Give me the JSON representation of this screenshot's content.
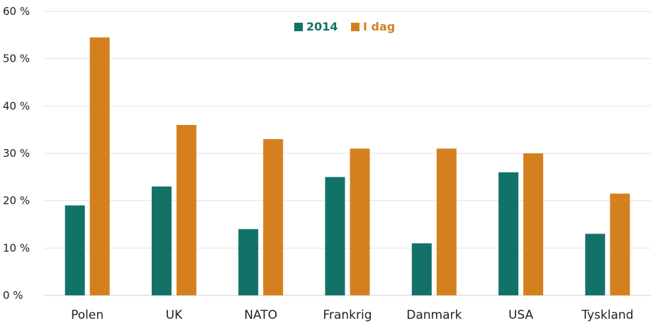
{
  "chart_data": {
    "type": "bar",
    "categories": [
      "Polen",
      "UK",
      "NATO",
      "Frankrig",
      "Danmark",
      "USA",
      "Tyskland"
    ],
    "series": [
      {
        "name": "2014",
        "color": "#137268",
        "values": [
          19,
          23,
          14,
          25,
          11,
          26,
          13
        ]
      },
      {
        "name": "I dag",
        "color": "#d5801f",
        "values": [
          54.5,
          36,
          33,
          31,
          31,
          30,
          21.5
        ]
      }
    ],
    "ylim": [
      0,
      60
    ],
    "yticks": [
      {
        "value": 0,
        "label": "0 %"
      },
      {
        "value": 10,
        "label": "10 %"
      },
      {
        "value": 20,
        "label": "20 %"
      },
      {
        "value": 30,
        "label": "30 %"
      },
      {
        "value": 40,
        "label": "40 %"
      },
      {
        "value": 50,
        "label": "50 %"
      },
      {
        "value": 60,
        "label": "60 %"
      }
    ],
    "grid": true,
    "legend_position": "top-center",
    "grid_color": "#e3e3e3"
  }
}
